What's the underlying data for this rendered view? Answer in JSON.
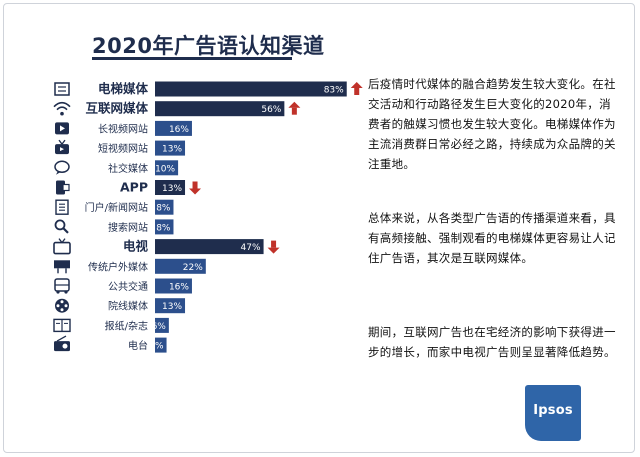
{
  "title": "2020年广告语认知渠道",
  "chart_data": {
    "type": "bar",
    "orientation": "horizontal",
    "xlim": [
      0,
      100
    ],
    "categories": [
      "电梯媒体",
      "互联网媒体",
      "长视频网站",
      "短视频网站",
      "社交媒体",
      "APP",
      "门户/新闻网站",
      "搜索网站",
      "电视",
      "传统户外媒体",
      "公共交通",
      "院线媒体",
      "报纸/杂志",
      "电台"
    ],
    "values": [
      83,
      56,
      16,
      13,
      10,
      13,
      8,
      8,
      47,
      22,
      16,
      13,
      6,
      5
    ],
    "value_labels": [
      "83%",
      "56%",
      "16%",
      "13%",
      "10%",
      "13%",
      "8%",
      "8%",
      "47%",
      "22%",
      "16%",
      "13%",
      "6%",
      "5%"
    ],
    "bold_categories": [
      "电梯媒体",
      "互联网媒体",
      "APP",
      "电视"
    ],
    "trend": [
      "up",
      "up",
      "",
      "",
      "",
      "down",
      "",
      "",
      "down",
      "",
      "",
      "",
      "",
      ""
    ],
    "icons": [
      "building-icon",
      "wifi-icon",
      "video-player-icon",
      "tv-icon",
      "chat-icon",
      "mobile-app-icon",
      "news-page-icon",
      "search-icon",
      "television-icon",
      "billboard-icon",
      "bus-icon",
      "film-reel-icon",
      "newspaper-icon",
      "radio-icon"
    ],
    "colors": {
      "dark_bar": "#1f2d4d",
      "light_bar": "#2c4f8c",
      "arrow": "#c0322a",
      "value_label": "#ffffff"
    }
  },
  "text": {
    "para1": "后疫情时代媒体的融合趋势发生较大变化。在社交活动和行动路径发生巨大变化的2020年，消费者的触媒习惯也发生较大变化。电梯媒体作为主流消费群日常必经之路，持续成为众品牌的关注重地。",
    "para2": "总体来说，从各类型广告语的传播渠道来看，具有高频接触、强制观看的电梯媒体更容易让人记住广告语，其次是互联网媒体。",
    "para3": "期间，互联网广告也在宅经济的影响下获得进一步的增长，而家中电视广告则呈显著降低趋势。"
  },
  "logo": {
    "text": "Ipsos"
  }
}
